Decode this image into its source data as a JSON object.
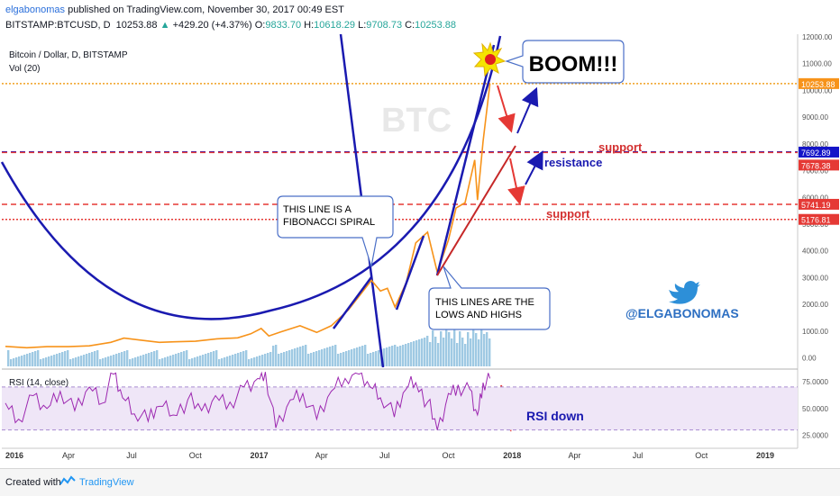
{
  "header": {
    "author": "elgabonomas",
    "published": "published on TradingView.com, November 30, 2017 00:49 EST",
    "symbol": "BITSTAMP:BTCUSD, D",
    "last": "10253.88",
    "change_arrow": "▲",
    "change": "+429.20 (+4.37%)",
    "o_label": "O:",
    "o": "9833.70",
    "h_label": "H:",
    "h": "10618.29",
    "l_label": "L:",
    "l": "9708.73",
    "c_label": "C:",
    "c": "10253.88"
  },
  "chart_data": [
    {
      "type": "line",
      "title": "Bitcoin / Dollar, D, BITSTAMP",
      "indicator": "Vol (20)",
      "watermark": "BTC",
      "x_ticks": [
        "2016",
        "Apr",
        "Jul",
        "Oct",
        "2017",
        "Apr",
        "Jul",
        "Oct",
        "2018",
        "Apr",
        "Jul",
        "Oct",
        "2019"
      ],
      "y_ticks": [
        0.0,
        1000.0,
        2000.0,
        3000.0,
        4000.0,
        5000.0,
        6000.0,
        7000.0,
        8000.0,
        9000.0,
        10000.0,
        11000.0,
        12000.0
      ],
      "y_tick_labels": [
        "0.00",
        "1000.00",
        "2000.00",
        "3000.00",
        "4000.00",
        "5000.00",
        "6000.00",
        "7000.00",
        "8000.00",
        "9000.00",
        "10000.00",
        "11000.00",
        "12000.00"
      ],
      "ylim": [
        -150,
        12100
      ],
      "price_series": {
        "name": "BTCUSD",
        "color": "#f7931a",
        "x": [
          "2016-01-01",
          "2016-02-01",
          "2016-03-01",
          "2016-04-01",
          "2016-05-01",
          "2016-06-01",
          "2016-06-20",
          "2016-07-15",
          "2016-08-10",
          "2016-09-01",
          "2016-10-01",
          "2016-11-01",
          "2016-12-01",
          "2016-12-20",
          "2017-01-04",
          "2017-01-15",
          "2017-02-01",
          "2017-03-01",
          "2017-03-25",
          "2017-04-15",
          "2017-05-10",
          "2017-05-25",
          "2017-06-12",
          "2017-06-25",
          "2017-07-05",
          "2017-07-16",
          "2017-08-01",
          "2017-08-15",
          "2017-09-01",
          "2017-09-15",
          "2017-10-01",
          "2017-10-12",
          "2017-10-25",
          "2017-11-08",
          "2017-11-12",
          "2017-11-20",
          "2017-11-30"
        ],
        "y": [
          430,
          380,
          420,
          420,
          450,
          580,
          740,
          660,
          580,
          600,
          620,
          710,
          750,
          900,
          1100,
          820,
          970,
          1200,
          950,
          1200,
          1800,
          2300,
          2900,
          2500,
          2600,
          1900,
          2800,
          4300,
          4700,
          3200,
          4400,
          5600,
          5800,
          7400,
          5900,
          8100,
          10253
        ]
      },
      "horizontal_lines": [
        {
          "label": "10253.88",
          "y": 10253.88,
          "color": "#f0a020",
          "style": "dotted"
        },
        {
          "label": "7692.89",
          "y": 7692.89,
          "color": "#1414c8",
          "style": "dashed"
        },
        {
          "label": "7678.38",
          "y": 7678.38,
          "color": "#e53935",
          "style": "dashed"
        },
        {
          "label": "5741.19",
          "y": 5741.19,
          "color": "#e53935",
          "style": "dashed"
        },
        {
          "label": "5176.81",
          "y": 5176.81,
          "color": "#e53935",
          "style": "dotted"
        }
      ],
      "annotations": [
        {
          "id": "boom",
          "text": "BOOM!!!"
        },
        {
          "id": "fib",
          "text": [
            "THIS LINE IS A",
            "FIBONACCI SPIRAL"
          ]
        },
        {
          "id": "lows",
          "text": [
            "THIS LINES ARE THE",
            "LOWS AND HIGHS"
          ]
        },
        {
          "id": "support1",
          "text": "support",
          "color": "#d32f2f"
        },
        {
          "id": "resistance",
          "text": "resistance",
          "color": "#1a1ab0"
        },
        {
          "id": "support2",
          "text": "support",
          "color": "#d32f2f"
        },
        {
          "id": "handle",
          "text": "@ELGABONOMAS",
          "color": "#2d6fc2"
        }
      ]
    },
    {
      "type": "line",
      "title": "RSI (14, close)",
      "y_ticks": [
        25,
        50,
        75
      ],
      "y_tick_labels": [
        "25.0000",
        "50.0000",
        "75.0000"
      ],
      "ylim": [
        18,
        85
      ],
      "band": [
        30,
        70
      ],
      "series": {
        "color": "#9c27b0",
        "x": [
          "2016-01-01",
          "2016-01-20",
          "2016-02-10",
          "2016-03-01",
          "2016-03-20",
          "2016-04-10",
          "2016-05-01",
          "2016-05-20",
          "2016-06-05",
          "2016-06-18",
          "2016-07-05",
          "2016-07-25",
          "2016-08-10",
          "2016-08-30",
          "2016-09-20",
          "2016-10-10",
          "2016-10-30",
          "2016-11-20",
          "2016-12-10",
          "2016-12-30",
          "2017-01-10",
          "2017-01-25",
          "2017-02-15",
          "2017-03-05",
          "2017-03-25",
          "2017-04-15",
          "2017-05-05",
          "2017-05-25",
          "2017-06-10",
          "2017-06-25",
          "2017-07-15",
          "2017-08-01",
          "2017-08-15",
          "2017-09-01",
          "2017-09-15",
          "2017-10-01",
          "2017-10-15",
          "2017-11-01",
          "2017-11-12",
          "2017-11-20",
          "2017-11-30"
        ],
        "y": [
          55,
          40,
          62,
          50,
          66,
          48,
          70,
          55,
          82,
          60,
          45,
          38,
          52,
          44,
          58,
          48,
          62,
          56,
          70,
          78,
          84,
          32,
          58,
          64,
          40,
          66,
          78,
          82,
          70,
          60,
          42,
          68,
          74,
          56,
          30,
          64,
          72,
          68,
          44,
          74,
          78
        ]
      },
      "annotation": {
        "text": "RSI down",
        "color": "#1a1ab0"
      }
    }
  ],
  "footer": {
    "created": "Created with",
    "brand": "TradingView"
  },
  "colors": {
    "fib_spiral": "#1a1ab0",
    "trend_blue": "#1a1ab0",
    "trend_red": "#c62828",
    "volume": "#7fb7d9"
  }
}
